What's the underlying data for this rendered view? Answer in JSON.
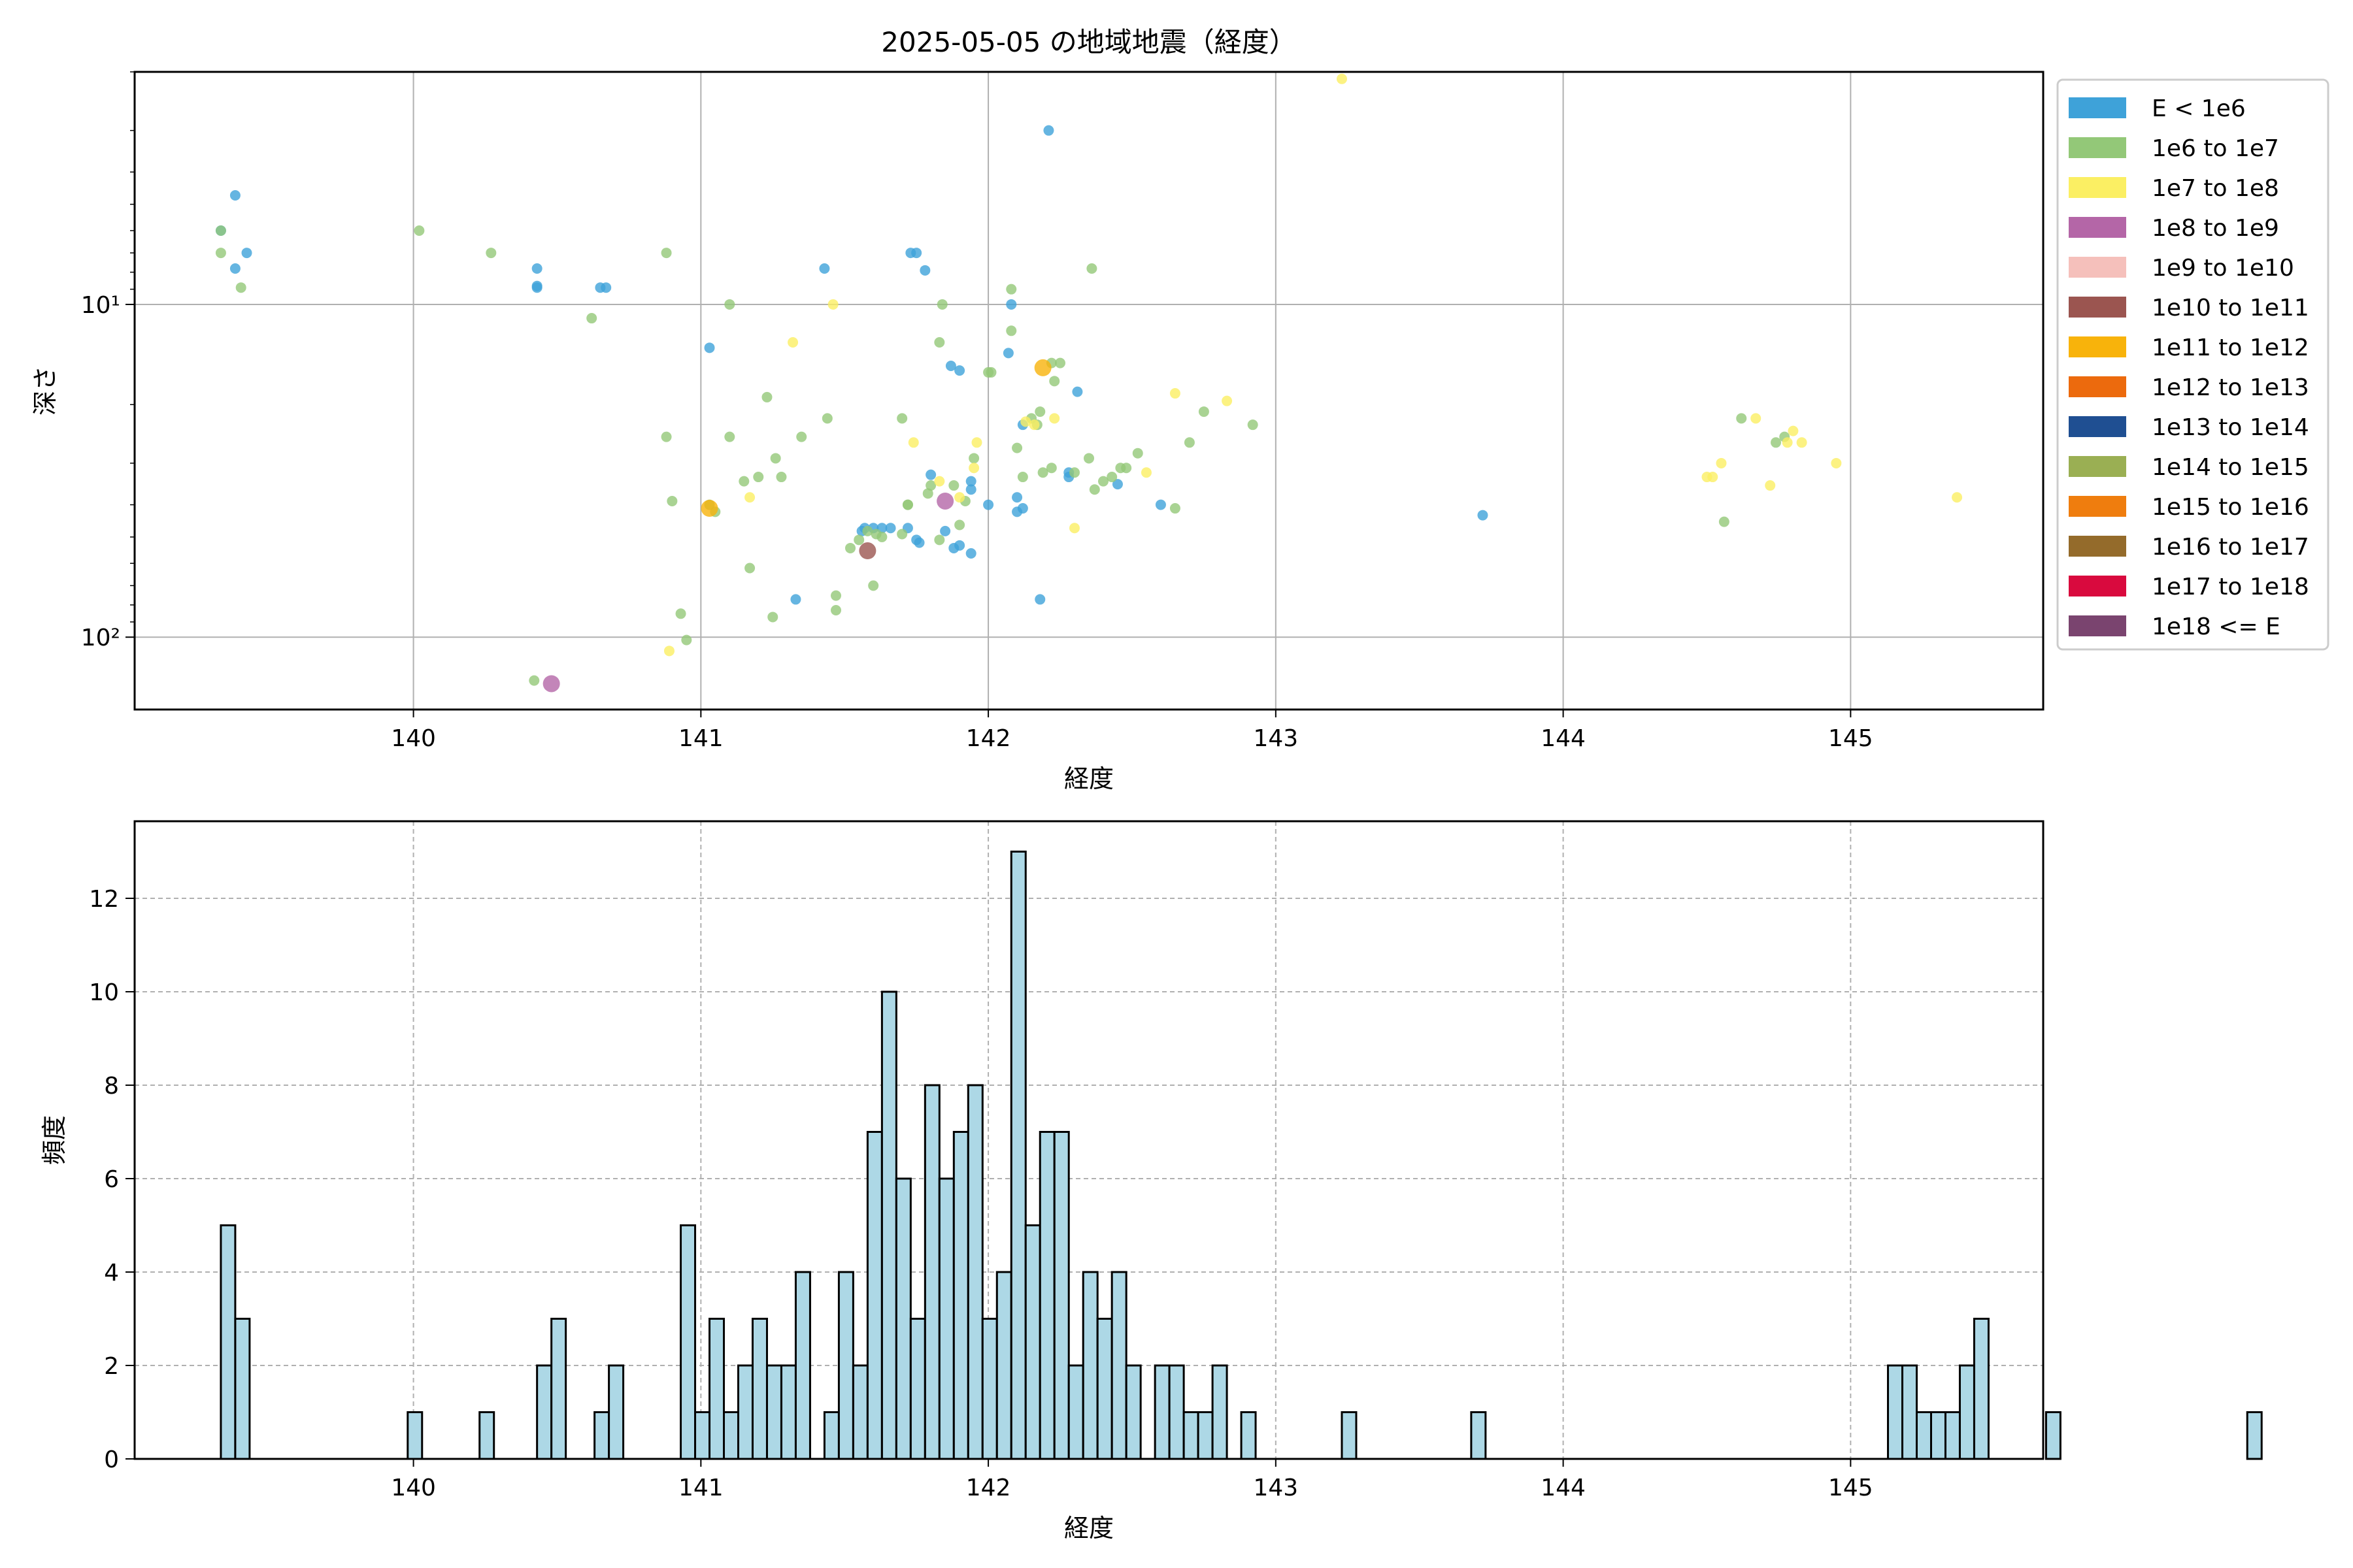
{
  "chart_data": [
    {
      "type": "scatter",
      "title": "2025-05-05 の地域地震（経度）",
      "xlabel": "経度",
      "ylabel": "深さ",
      "xlim": [
        139.03,
        145.67
      ],
      "ylim": [
        165,
        2
      ],
      "y_scale": "log",
      "y_inverted": true,
      "grid": true,
      "xticks": [
        140,
        141,
        142,
        143,
        144,
        145
      ],
      "yticks": [
        {
          "value": 10,
          "label": "10¹"
        },
        {
          "value": 100,
          "label": "10²"
        }
      ],
      "legend": {
        "placement": "outside-right",
        "entries": [
          {
            "label": "E < 1e6",
            "color": "#3ea2d9"
          },
          {
            "label": "1e6 to 1e7",
            "color": "#93c878"
          },
          {
            "label": "1e7 to 1e8",
            "color": "#fbef63"
          },
          {
            "label": "1e8 to 1e9",
            "color": "#b466a7"
          },
          {
            "label": "1e9 to 1e10",
            "color": "#f5c0bb"
          },
          {
            "label": "1e10 to 1e11",
            "color": "#9b5550"
          },
          {
            "label": "1e11 to 1e12",
            "color": "#f8b30b"
          },
          {
            "label": "1e12 to 1e13",
            "color": "#ec6a0d"
          },
          {
            "label": "1e13 to 1e14",
            "color": "#1f4f92"
          },
          {
            "label": "1e14 to 1e15",
            "color": "#9aaf53"
          },
          {
            "label": "1e15 to 1e16",
            "color": "#ef7d0e"
          },
          {
            "label": "1e16 to 1e17",
            "color": "#946b2b"
          },
          {
            "label": "1e17 to 1e18",
            "color": "#d90a3e"
          },
          {
            "label": "1e18 <= E",
            "color": "#7a446f"
          }
        ]
      },
      "points": [
        [
          139.33,
          6,
          0
        ],
        [
          139.38,
          4.7,
          0
        ],
        [
          139.38,
          7.8,
          0
        ],
        [
          139.42,
          7,
          0
        ],
        [
          140.43,
          7.8,
          0
        ],
        [
          140.43,
          8.8,
          0
        ],
        [
          140.43,
          8.9,
          0
        ],
        [
          140.65,
          8.9,
          0
        ],
        [
          140.67,
          8.9,
          0
        ],
        [
          141.03,
          13.5,
          0
        ],
        [
          141.33,
          77,
          0
        ],
        [
          141.43,
          7.8,
          0
        ],
        [
          141.73,
          7,
          0
        ],
        [
          141.75,
          7,
          0
        ],
        [
          141.78,
          7.9,
          0
        ],
        [
          142.08,
          10,
          0
        ],
        [
          142.07,
          14,
          0
        ],
        [
          142.21,
          3,
          0
        ],
        [
          142.31,
          18.3,
          0
        ],
        [
          143.72,
          43,
          0
        ],
        [
          142.18,
          77,
          0
        ],
        [
          142.12,
          23,
          0
        ],
        [
          142.28,
          32,
          0
        ],
        [
          142.28,
          33,
          0
        ],
        [
          142.12,
          41,
          0
        ],
        [
          142.1,
          42,
          0
        ],
        [
          142.1,
          38,
          0
        ],
        [
          142.0,
          40,
          0
        ],
        [
          141.94,
          36,
          0
        ],
        [
          141.94,
          34,
          0
        ],
        [
          141.8,
          32.5,
          0
        ],
        [
          141.85,
          48,
          0
        ],
        [
          141.9,
          53,
          0
        ],
        [
          141.88,
          54,
          0
        ],
        [
          141.94,
          56,
          0
        ],
        [
          141.75,
          51,
          0
        ],
        [
          141.76,
          52,
          0
        ],
        [
          141.72,
          47,
          0
        ],
        [
          141.66,
          47,
          0
        ],
        [
          141.63,
          47,
          0
        ],
        [
          141.6,
          47,
          0
        ],
        [
          141.57,
          47,
          0
        ],
        [
          141.56,
          48,
          0
        ],
        [
          141.87,
          15.3,
          0
        ],
        [
          141.9,
          15.8,
          0
        ],
        [
          142.45,
          34.7,
          0
        ],
        [
          142.6,
          40,
          0
        ],
        [
          139.33,
          6,
          1
        ],
        [
          139.33,
          7,
          1
        ],
        [
          139.4,
          8.9,
          1
        ],
        [
          140.02,
          6,
          1
        ],
        [
          140.27,
          7,
          1
        ],
        [
          140.62,
          11,
          1
        ],
        [
          140.88,
          7,
          1
        ],
        [
          140.88,
          25,
          1
        ],
        [
          140.9,
          39,
          1
        ],
        [
          140.93,
          85,
          1
        ],
        [
          140.95,
          102,
          1
        ],
        [
          140.42,
          135,
          1
        ],
        [
          141.03,
          40,
          1
        ],
        [
          141.05,
          42,
          1
        ],
        [
          141.1,
          10,
          1
        ],
        [
          141.1,
          25,
          1
        ],
        [
          141.15,
          34,
          1
        ],
        [
          141.17,
          62,
          1
        ],
        [
          141.2,
          33,
          1
        ],
        [
          141.23,
          19,
          1
        ],
        [
          141.26,
          29,
          1
        ],
        [
          141.28,
          33,
          1
        ],
        [
          141.25,
          87,
          1
        ],
        [
          141.35,
          25,
          1
        ],
        [
          141.44,
          22,
          1
        ],
        [
          141.47,
          75,
          1
        ],
        [
          141.47,
          83,
          1
        ],
        [
          141.52,
          54,
          1
        ],
        [
          141.55,
          51,
          1
        ],
        [
          141.58,
          48,
          1
        ],
        [
          141.6,
          70,
          1
        ],
        [
          141.61,
          49,
          1
        ],
        [
          141.63,
          50,
          1
        ],
        [
          141.7,
          22,
          1
        ],
        [
          141.7,
          49,
          1
        ],
        [
          141.72,
          40,
          1
        ],
        [
          141.72,
          40,
          1
        ],
        [
          141.79,
          37,
          1
        ],
        [
          141.8,
          35,
          1
        ],
        [
          141.83,
          51,
          1
        ],
        [
          141.84,
          10,
          1
        ],
        [
          141.83,
          13,
          1
        ],
        [
          141.88,
          35,
          1
        ],
        [
          141.9,
          46,
          1
        ],
        [
          141.92,
          39,
          1
        ],
        [
          141.95,
          29,
          1
        ],
        [
          142.01,
          16,
          1
        ],
        [
          142.08,
          9,
          1
        ],
        [
          142.08,
          12,
          1
        ],
        [
          142.1,
          27,
          1
        ],
        [
          142.12,
          33,
          1
        ],
        [
          142.15,
          22,
          1
        ],
        [
          142.17,
          23,
          1
        ],
        [
          142.18,
          21,
          1
        ],
        [
          142.22,
          15,
          1
        ],
        [
          142.23,
          17,
          1
        ],
        [
          142.25,
          15,
          1
        ],
        [
          142.19,
          32,
          1
        ],
        [
          142.22,
          31,
          1
        ],
        [
          142.3,
          32,
          1
        ],
        [
          142.35,
          29,
          1
        ],
        [
          142.36,
          7.8,
          1
        ],
        [
          142.37,
          36,
          1
        ],
        [
          142.4,
          34,
          1
        ],
        [
          142.43,
          33,
          1
        ],
        [
          142.46,
          31,
          1
        ],
        [
          142.48,
          31,
          1
        ],
        [
          142.52,
          28,
          1
        ],
        [
          142.65,
          41,
          1
        ],
        [
          142.7,
          26,
          1
        ],
        [
          142.75,
          21,
          1
        ],
        [
          142.92,
          23,
          1
        ],
        [
          142.0,
          16,
          1
        ],
        [
          144.62,
          22,
          1
        ],
        [
          144.56,
          45,
          1
        ],
        [
          144.74,
          26,
          1
        ],
        [
          144.77,
          25,
          1
        ],
        [
          143.23,
          2.1,
          2
        ],
        [
          141.46,
          10,
          2
        ],
        [
          141.32,
          13,
          2
        ],
        [
          141.17,
          38,
          2
        ],
        [
          140.89,
          110,
          2
        ],
        [
          141.74,
          26,
          2
        ],
        [
          141.83,
          34,
          2
        ],
        [
          141.9,
          38,
          2
        ],
        [
          141.95,
          31,
          2
        ],
        [
          141.96,
          26,
          2
        ],
        [
          142.13,
          22.5,
          2
        ],
        [
          142.16,
          23,
          2
        ],
        [
          142.23,
          22,
          2
        ],
        [
          142.3,
          47,
          2
        ],
        [
          142.55,
          32,
          2
        ],
        [
          142.65,
          18.5,
          2
        ],
        [
          142.83,
          19.5,
          2
        ],
        [
          144.5,
          33,
          2
        ],
        [
          144.52,
          33,
          2
        ],
        [
          144.55,
          30,
          2
        ],
        [
          144.67,
          22,
          2
        ],
        [
          144.72,
          35,
          2
        ],
        [
          144.78,
          26,
          2
        ],
        [
          144.8,
          24,
          2
        ],
        [
          144.83,
          26,
          2
        ],
        [
          144.95,
          30,
          2
        ],
        [
          145.37,
          38,
          2
        ],
        [
          141.85,
          39,
          3
        ],
        [
          140.48,
          138,
          3
        ],
        [
          141.58,
          55,
          5
        ],
        [
          141.03,
          41,
          6
        ],
        [
          142.19,
          15.5,
          6
        ]
      ]
    },
    {
      "type": "bar",
      "title": "",
      "xlabel": "経度",
      "ylabel": "頻度",
      "xlim": [
        139.03,
        145.67
      ],
      "ylim": [
        0,
        13.65
      ],
      "grid": true,
      "xticks": [
        140,
        141,
        142,
        143,
        144,
        145
      ],
      "yticks": [
        0,
        2,
        4,
        6,
        8,
        10,
        12
      ],
      "bar_color": "#add8e6",
      "bin_start": 139.33,
      "bin_width": 0.05,
      "values": [
        5,
        3,
        0,
        0,
        0,
        0,
        0,
        0,
        0,
        0,
        0,
        0,
        0,
        1,
        0,
        0,
        0,
        0,
        1,
        0,
        0,
        0,
        2,
        3,
        0,
        0,
        1,
        2,
        0,
        0,
        0,
        0,
        5,
        1,
        3,
        1,
        2,
        3,
        2,
        2,
        4,
        0,
        1,
        4,
        2,
        7,
        10,
        6,
        3,
        8,
        6,
        7,
        8,
        3,
        4,
        13,
        5,
        7,
        7,
        2,
        4,
        3,
        4,
        2,
        0,
        2,
        2,
        1,
        1,
        2,
        0,
        1,
        0,
        0,
        0,
        0,
        0,
        0,
        1,
        0,
        0,
        0,
        0,
        0,
        0,
        0,
        0,
        1,
        0,
        0,
        0,
        0,
        0,
        0,
        0,
        0,
        0,
        0,
        0,
        0,
        0,
        0,
        0,
        0,
        0,
        0,
        0,
        0,
        0,
        0,
        0,
        0,
        0,
        0,
        0,
        0,
        2,
        2,
        1,
        1,
        1,
        2,
        3,
        0,
        0,
        0,
        0,
        1,
        0,
        0,
        0,
        0,
        0,
        0,
        0,
        0,
        0,
        0,
        0,
        0,
        0,
        1
      ]
    }
  ]
}
